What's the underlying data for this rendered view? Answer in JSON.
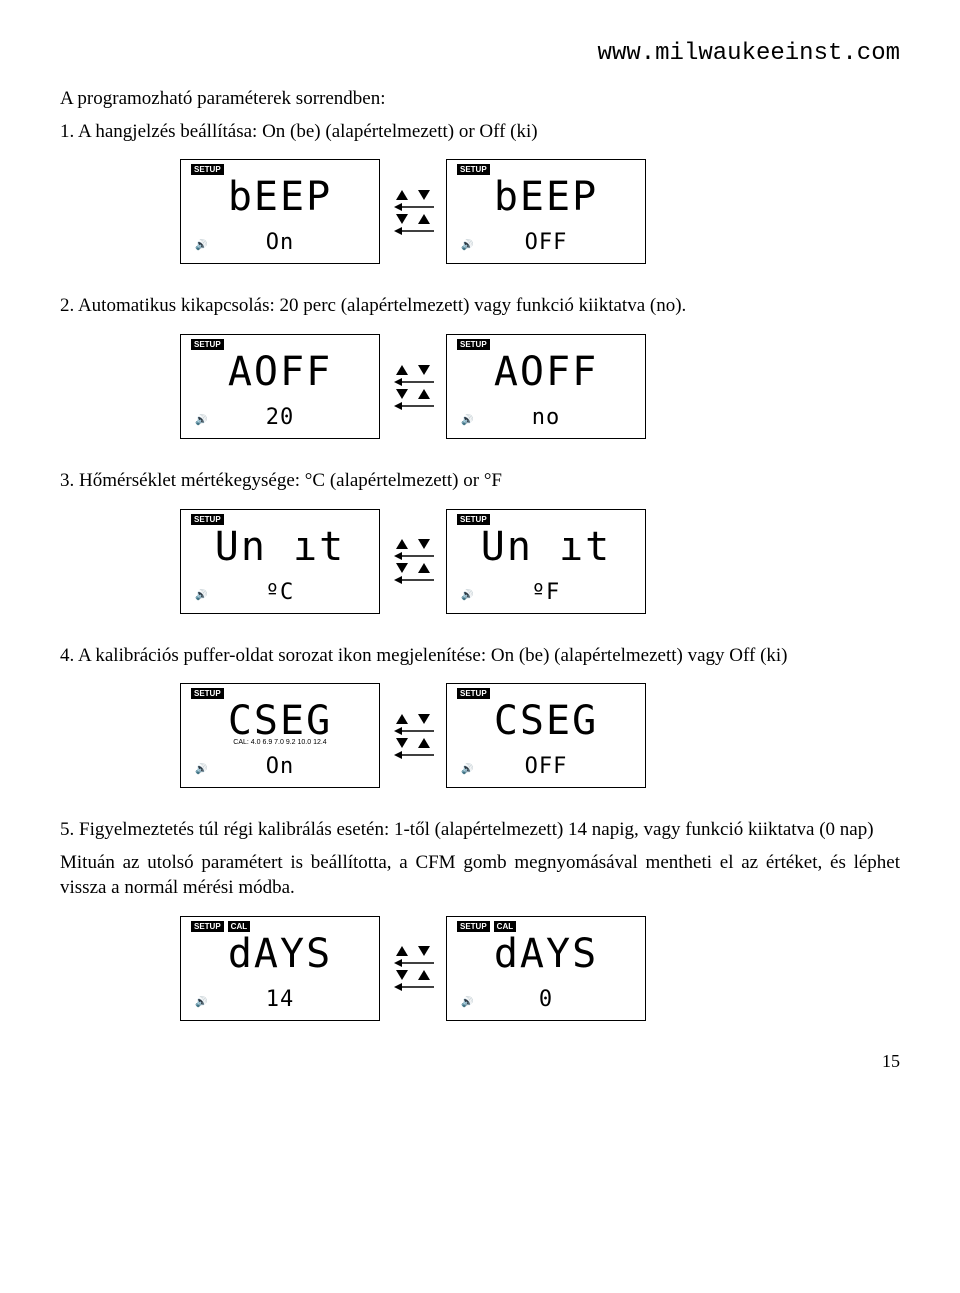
{
  "url": "www.milwaukeeinst.com",
  "intro": "A programozható paraméterek sorrendben:",
  "items": [
    {
      "text": "1. A hangjelzés beállítása: On (be) (alapértelmezett) or Off (ki)",
      "left": {
        "setup": "SETUP",
        "cal": "",
        "main": "bEEP",
        "calline": "",
        "sub": "On"
      },
      "right": {
        "setup": "SETUP",
        "cal": "",
        "main": "bEEP",
        "calline": "",
        "sub": "OFF"
      }
    },
    {
      "text": "2. Automatikus kikapcsolás: 20 perc (alapértelmezett) vagy funkció kiiktatva (no).",
      "left": {
        "setup": "SETUP",
        "cal": "",
        "main": "AOFF",
        "calline": "",
        "sub": "20"
      },
      "right": {
        "setup": "SETUP",
        "cal": "",
        "main": "AOFF",
        "calline": "",
        "sub": "no"
      }
    },
    {
      "text": "3. Hőmérséklet mértékegysége: °C (alapértelmezett) or °F",
      "left": {
        "setup": "SETUP",
        "cal": "",
        "main": "Un ıt",
        "calline": "",
        "sub": "ºC"
      },
      "right": {
        "setup": "SETUP",
        "cal": "",
        "main": "Un ıt",
        "calline": "",
        "sub": "ºF"
      }
    },
    {
      "text": "4. A kalibrációs puffer-oldat sorozat ikon megjelenítése: On (be) (alapértelmezett) vagy Off (ki)",
      "left": {
        "setup": "SETUP",
        "cal": "",
        "main": "CSEG",
        "calline": "CAL: 4.0 6.9 7.0 9.2 10.0 12.4",
        "sub": "On"
      },
      "right": {
        "setup": "SETUP",
        "cal": "",
        "main": "CSEG",
        "calline": "",
        "sub": "OFF"
      }
    },
    {
      "text": "5. Figyelmeztetés túl régi kalibrálás esetén: 1-től (alapértelmezett)  14 napig, vagy funkció kiiktatva (0 nap)",
      "extra": "Mituán az utolsó paramétert is beállította, a CFM gomb megnyomásával mentheti el az értéket, és léphet vissza a normál mérési módba.",
      "left": {
        "setup": "SETUP",
        "cal": "CAL",
        "main": "dAYS",
        "calline": "",
        "sub": "14"
      },
      "right": {
        "setup": "SETUP",
        "cal": "CAL",
        "main": "dAYS",
        "calline": "",
        "sub": "0"
      }
    }
  ],
  "page_number": "15"
}
